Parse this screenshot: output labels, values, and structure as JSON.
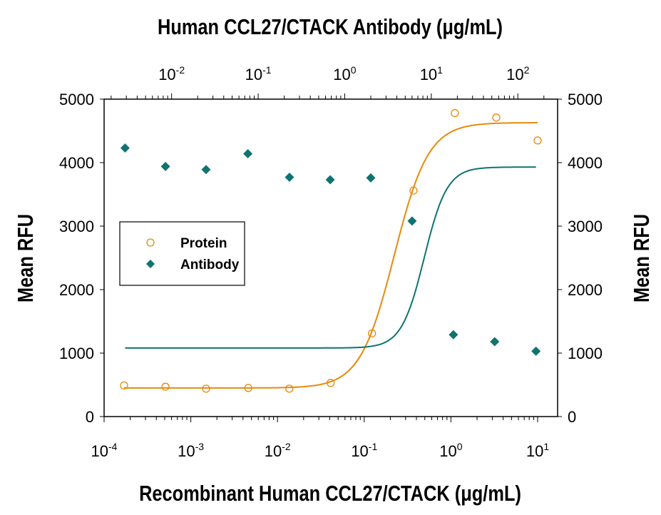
{
  "chart_data": {
    "type": "scatter",
    "title_top": "Human CCL27/CTACK Antibody (μg/mL)",
    "xlabel": "Recombinant Human CCL27/CTACK (μg/mL)",
    "ylabel_left": "Mean RFU",
    "ylabel_right": "Mean RFU",
    "x_scale": "log",
    "xlim_bottom": [
      0.0001,
      17
    ],
    "xlim_top": [
      0.00166,
      288
    ],
    "ylim": [
      0,
      5000
    ],
    "x_ticks_bottom": [
      {
        "base": "10",
        "exp": "-4"
      },
      {
        "base": "10",
        "exp": "-3"
      },
      {
        "base": "10",
        "exp": "-2"
      },
      {
        "base": "10",
        "exp": "-1"
      },
      {
        "base": "10",
        "exp": "0"
      },
      {
        "base": "10",
        "exp": "1"
      }
    ],
    "x_ticks_top": [
      {
        "base": "10",
        "exp": "-2"
      },
      {
        "base": "10",
        "exp": "-1"
      },
      {
        "base": "10",
        "exp": "0"
      },
      {
        "base": "10",
        "exp": "1"
      },
      {
        "base": "10",
        "exp": "2"
      }
    ],
    "y_ticks": [
      "0",
      "1000",
      "2000",
      "3000",
      "4000",
      "5000"
    ],
    "grid": false,
    "legend_position": "middle-left",
    "series": [
      {
        "name": "Protein",
        "axis": "bottom",
        "marker": "open-circle",
        "color": "#E8890C",
        "x": [
          0.00017,
          0.00051,
          0.0015,
          0.0046,
          0.0137,
          0.041,
          0.123,
          0.37,
          1.11,
          3.33,
          10
        ],
        "y": [
          490,
          470,
          440,
          450,
          440,
          530,
          1310,
          3560,
          4780,
          4710,
          4350
        ],
        "fit": {
          "bottom": 450,
          "top": 4630,
          "ec50": 0.222,
          "hill": 2.2
        }
      },
      {
        "name": "Antibody",
        "axis": "top",
        "marker": "filled-diamond",
        "color": "#0E7470",
        "x": [
          0.0029,
          0.0085,
          0.025,
          0.076,
          0.23,
          0.68,
          2.0,
          6.0,
          18,
          54,
          162
        ],
        "y": [
          4230,
          3940,
          3890,
          4140,
          3770,
          3730,
          3760,
          3080,
          1290,
          1180,
          1030
        ],
        "fit": {
          "bottom": 1080,
          "top": 3930,
          "ec50": 8.3,
          "hill": 3.3
        }
      }
    ]
  }
}
